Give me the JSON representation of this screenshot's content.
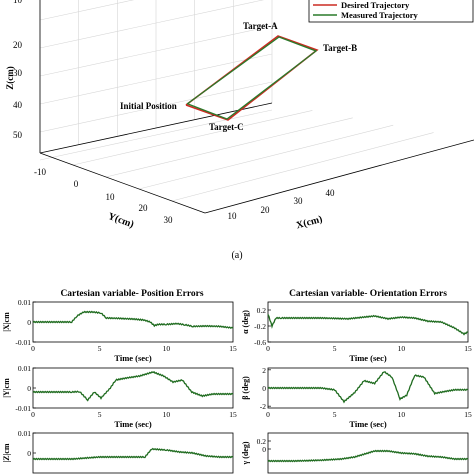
{
  "chart_data": [
    {
      "type": "line",
      "subtype": "3d-trajectory",
      "axes": {
        "x": {
          "label": "X(cm)",
          "ticks": [
            "10",
            "20",
            "30",
            "40"
          ]
        },
        "y": {
          "label": "Y(cm)",
          "ticks": [
            "-10",
            "0",
            "10",
            "20",
            "30"
          ]
        },
        "z": {
          "label": "Z(cm)",
          "ticks": [
            "20",
            "30",
            "40",
            "50"
          ],
          "partial_tick": "10"
        }
      },
      "legend": {
        "placement": "top-right",
        "entries": [
          {
            "name": "Desired Trajectory",
            "color": "#cc2b22"
          },
          {
            "name": "Measured Trajectory",
            "color": "#2a7a2a"
          }
        ]
      },
      "annotations": [
        "Target-A",
        "Target-B",
        "Initial Position",
        "Target-C"
      ],
      "caption": "(a)",
      "grid": true
    },
    {
      "type": "line",
      "title": "Cartesian variable- Position Errors",
      "xlabel": "Time (sec)",
      "xlim": [
        0,
        15
      ],
      "xticks": [
        "0",
        "5",
        "10",
        "15"
      ],
      "color": "#1f6b1f",
      "panels": [
        {
          "ylabel": "|X|cm",
          "ylim": [
            -0.01,
            0.01
          ],
          "yticks": [
            "0.01",
            "0",
            "-0.01"
          ],
          "x": [
            0,
            2.9,
            3.3,
            3.8,
            4.5,
            5.1,
            5.5,
            6.5,
            7.5,
            8.3,
            8.8,
            9.1,
            9.4,
            10,
            10.8,
            11.4,
            12,
            13,
            14,
            15
          ],
          "y": [
            0,
            0,
            0.003,
            0.005,
            0.005,
            0.0045,
            0.002,
            0.0018,
            0.0015,
            0.001,
            0,
            -0.0018,
            -0.0012,
            -0.0012,
            -0.0008,
            -0.0014,
            -0.0022,
            -0.002,
            -0.0022,
            -0.003
          ]
        },
        {
          "ylabel": "|Y|cm",
          "ylim": [
            -0.01,
            0.01
          ],
          "yticks": [
            "0.01",
            "0",
            "-0.01"
          ],
          "x": [
            0,
            2.9,
            3.5,
            4.1,
            4.6,
            5.1,
            5.8,
            6.2,
            7,
            8,
            9,
            9.8,
            10.5,
            11.2,
            11.9,
            12.7,
            13.5,
            15
          ],
          "y": [
            -0.002,
            -0.002,
            -0.0018,
            -0.006,
            -0.002,
            -0.005,
            0,
            0.004,
            0.005,
            0.006,
            0.008,
            0.006,
            0.003,
            0.004,
            -0.002,
            -0.004,
            -0.003,
            -0.003
          ]
        },
        {
          "ylabel": "|Z|cm",
          "ylim": [
            -0.01,
            0.01
          ],
          "yticks": [
            "0.01",
            "0"
          ],
          "x": [
            0,
            3,
            5,
            7,
            8.4,
            8.9,
            10,
            11,
            12,
            13,
            14,
            15
          ],
          "y": [
            -0.003,
            -0.003,
            -0.002,
            -0.002,
            -0.002,
            0.002,
            0.0015,
            0.0005,
            0,
            -0.0015,
            -0.002,
            -0.002
          ]
        }
      ]
    },
    {
      "type": "line",
      "title": "Cartesian variable- Orientation Errors",
      "xlabel": "Time (sec)",
      "xlim": [
        0,
        15
      ],
      "xticks": [
        "0",
        "5",
        "10",
        "15"
      ],
      "color": "#1f6b1f",
      "panels": [
        {
          "ylabel": "α (deg)",
          "ylim": [
            -0.6,
            0.4
          ],
          "yticks": [
            "0.2",
            "-0.2",
            "-0.6"
          ],
          "x": [
            0,
            0.3,
            0.6,
            1,
            2,
            4,
            6,
            8,
            9,
            10,
            11,
            12,
            13,
            14,
            14.7,
            15
          ],
          "y": [
            0.1,
            -0.2,
            0,
            0,
            0,
            0,
            -0.02,
            0.05,
            -0.02,
            0.02,
            0,
            -0.08,
            -0.1,
            -0.25,
            -0.4,
            -0.35
          ]
        },
        {
          "ylabel": "β (deg)",
          "ylim": [
            -2.2,
            2.2
          ],
          "yticks": [
            "2",
            "0",
            "-2"
          ],
          "x": [
            0,
            3,
            4,
            5,
            5.7,
            6.5,
            7.2,
            8,
            8.7,
            9.3,
            9.9,
            10.4,
            11,
            11.7,
            12.5,
            13.2,
            14,
            15
          ],
          "y": [
            0,
            0,
            0,
            -0.2,
            -1.5,
            -0.5,
            0.8,
            0.5,
            1.8,
            1.2,
            -1.2,
            -0.8,
            1.4,
            1.2,
            -0.6,
            -0.4,
            -0.2,
            -0.2
          ]
        },
        {
          "ylabel": "γ (deg)",
          "ylim": [
            -0.6,
            0.4
          ],
          "yticks": [
            "0.2",
            "0"
          ],
          "x": [
            0,
            2,
            4,
            5.5,
            6.5,
            7,
            8,
            9,
            10,
            11,
            12,
            13,
            14,
            15
          ],
          "y": [
            -0.3,
            -0.3,
            -0.28,
            -0.25,
            -0.2,
            -0.15,
            -0.05,
            -0.05,
            -0.1,
            -0.12,
            -0.18,
            -0.2,
            -0.25,
            -0.25
          ]
        }
      ]
    }
  ]
}
